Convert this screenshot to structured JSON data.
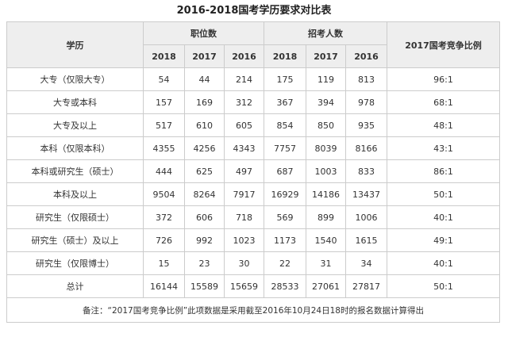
{
  "title": "2016-2018国考学历要求对比表",
  "header": {
    "education": "学历",
    "positions": "职位数",
    "applicants": "招考人数",
    "ratio": "2017国考竞争比例",
    "position_years": [
      "2018",
      "2017",
      "2016"
    ],
    "applicant_years": [
      "2018",
      "2017",
      "2016"
    ]
  },
  "rows": [
    [
      "大专（仅限大专）",
      54,
      44,
      214,
      175,
      119,
      813,
      "96:1"
    ],
    [
      "大专或本科",
      157,
      169,
      312,
      367,
      394,
      978,
      "68:1"
    ],
    [
      "大专及以上",
      517,
      610,
      605,
      854,
      850,
      935,
      "48:1"
    ],
    [
      "本科（仅限本科）",
      4355,
      4256,
      4343,
      7757,
      8039,
      8166,
      "43:1"
    ],
    [
      "本科或研究生（硕士）",
      444,
      625,
      497,
      687,
      1003,
      833,
      "86:1"
    ],
    [
      "本科及以上",
      9504,
      8264,
      7917,
      16929,
      14186,
      13437,
      "50:1"
    ],
    [
      "研究生（仅限硕士）",
      372,
      606,
      718,
      569,
      899,
      1006,
      "40:1"
    ],
    [
      "研究生（硕士）及以上",
      726,
      992,
      1023,
      1173,
      1540,
      1615,
      "49:1"
    ],
    [
      "研究生（仅限博士）",
      15,
      23,
      30,
      22,
      31,
      34,
      "40:1"
    ],
    [
      "总计",
      16144,
      15589,
      15659,
      28533,
      27061,
      27817,
      "50:1"
    ]
  ],
  "note": "备注：“2017国考竞争比例”此项数据是采用截至2016年10月24日18时的报名数据计算得出"
}
